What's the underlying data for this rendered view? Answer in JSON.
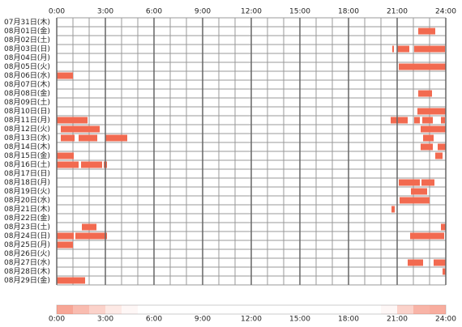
{
  "chart_data": {
    "type": "timeline",
    "color": "#f26a50",
    "xlim": [
      0,
      24
    ],
    "xticks": [
      {
        "value": 0,
        "label": "0:00"
      },
      {
        "value": 3,
        "label": "3:00"
      },
      {
        "value": 6,
        "label": "6:00"
      },
      {
        "value": 9,
        "label": "9:00"
      },
      {
        "value": 12,
        "label": "12:00"
      },
      {
        "value": 15,
        "label": "15:00"
      },
      {
        "value": 18,
        "label": "18:00"
      },
      {
        "value": 21,
        "label": "21:00"
      },
      {
        "value": 24,
        "label": "24:00"
      }
    ],
    "rows": [
      {
        "label": "07月31日(木)",
        "intervals": []
      },
      {
        "label": "08月01日(金)",
        "intervals": [
          [
            22.3,
            23.35
          ]
        ]
      },
      {
        "label": "08月02日(土)",
        "intervals": []
      },
      {
        "label": "08月03日(日)",
        "intervals": [
          [
            20.7,
            20.8
          ],
          [
            21.0,
            21.75
          ],
          [
            22.05,
            23.95
          ]
        ]
      },
      {
        "label": "08月04日(月)",
        "intervals": []
      },
      {
        "label": "08月05日(火)",
        "intervals": [
          [
            21.1,
            24
          ]
        ]
      },
      {
        "label": "08月06日(水)",
        "intervals": [
          [
            0,
            1.0
          ]
        ]
      },
      {
        "label": "08月07日(木)",
        "intervals": []
      },
      {
        "label": "08月08日(金)",
        "intervals": [
          [
            22.3,
            23.15
          ]
        ]
      },
      {
        "label": "08月09日(土)",
        "intervals": []
      },
      {
        "label": "08月10日(日)",
        "intervals": [
          [
            22.25,
            24
          ]
        ]
      },
      {
        "label": "08月11日(月)",
        "intervals": [
          [
            0,
            1.9
          ],
          [
            20.6,
            21.65
          ],
          [
            22.05,
            22.4
          ],
          [
            22.55,
            23.2
          ],
          [
            23.7,
            23.95
          ]
        ]
      },
      {
        "label": "08月12日(火)",
        "intervals": [
          [
            0.25,
            2.65
          ],
          [
            22.45,
            24
          ]
        ]
      },
      {
        "label": "08月13日(水)",
        "intervals": [
          [
            0.25,
            1.1
          ],
          [
            1.35,
            2.5
          ],
          [
            3.0,
            4.35
          ],
          [
            22.6,
            23.25
          ]
        ]
      },
      {
        "label": "08月14日(木)",
        "intervals": [
          [
            22.45,
            23.2
          ],
          [
            23.5,
            24
          ]
        ]
      },
      {
        "label": "08月15日(金)",
        "intervals": [
          [
            0,
            1.05
          ],
          [
            23.35,
            23.8
          ]
        ]
      },
      {
        "label": "08月16日(土)",
        "intervals": [
          [
            0,
            1.35
          ],
          [
            1.5,
            2.8
          ],
          [
            2.9,
            3.1
          ]
        ]
      },
      {
        "label": "08月17日(日)",
        "intervals": []
      },
      {
        "label": "08月18日(月)",
        "intervals": [
          [
            21.1,
            22.4
          ],
          [
            22.5,
            23.3
          ]
        ]
      },
      {
        "label": "08月19日(火)",
        "intervals": [
          [
            21.85,
            22.85
          ]
        ]
      },
      {
        "label": "08月20日(水)",
        "intervals": [
          [
            21.15,
            23.0
          ]
        ]
      },
      {
        "label": "08月21日(木)",
        "intervals": [
          [
            20.65,
            20.85
          ]
        ]
      },
      {
        "label": "08月22日(金)",
        "intervals": []
      },
      {
        "label": "08月23日(土)",
        "intervals": [
          [
            1.55,
            2.45
          ],
          [
            23.7,
            24
          ]
        ]
      },
      {
        "label": "08月24日(日)",
        "intervals": [
          [
            0,
            1.05
          ],
          [
            1.15,
            3.1
          ],
          [
            21.8,
            23.9
          ]
        ]
      },
      {
        "label": "08月25日(月)",
        "intervals": [
          [
            0,
            1.0
          ]
        ]
      },
      {
        "label": "08月26日(火)",
        "intervals": []
      },
      {
        "label": "08月27日(水)",
        "intervals": [
          [
            21.65,
            22.6
          ],
          [
            23.25,
            24
          ]
        ]
      },
      {
        "label": "08月28日(木)",
        "intervals": [
          [
            23.8,
            24
          ]
        ]
      },
      {
        "label": "08月29日(金)",
        "intervals": [
          [
            0,
            1.75
          ]
        ]
      }
    ],
    "density": [
      0.6,
      0.45,
      0.3,
      0.15,
      0.05,
      0,
      0,
      0,
      0,
      0,
      0,
      0,
      0,
      0,
      0,
      0,
      0,
      0,
      0,
      0,
      0.05,
      0.3,
      0.5,
      0.55
    ]
  }
}
